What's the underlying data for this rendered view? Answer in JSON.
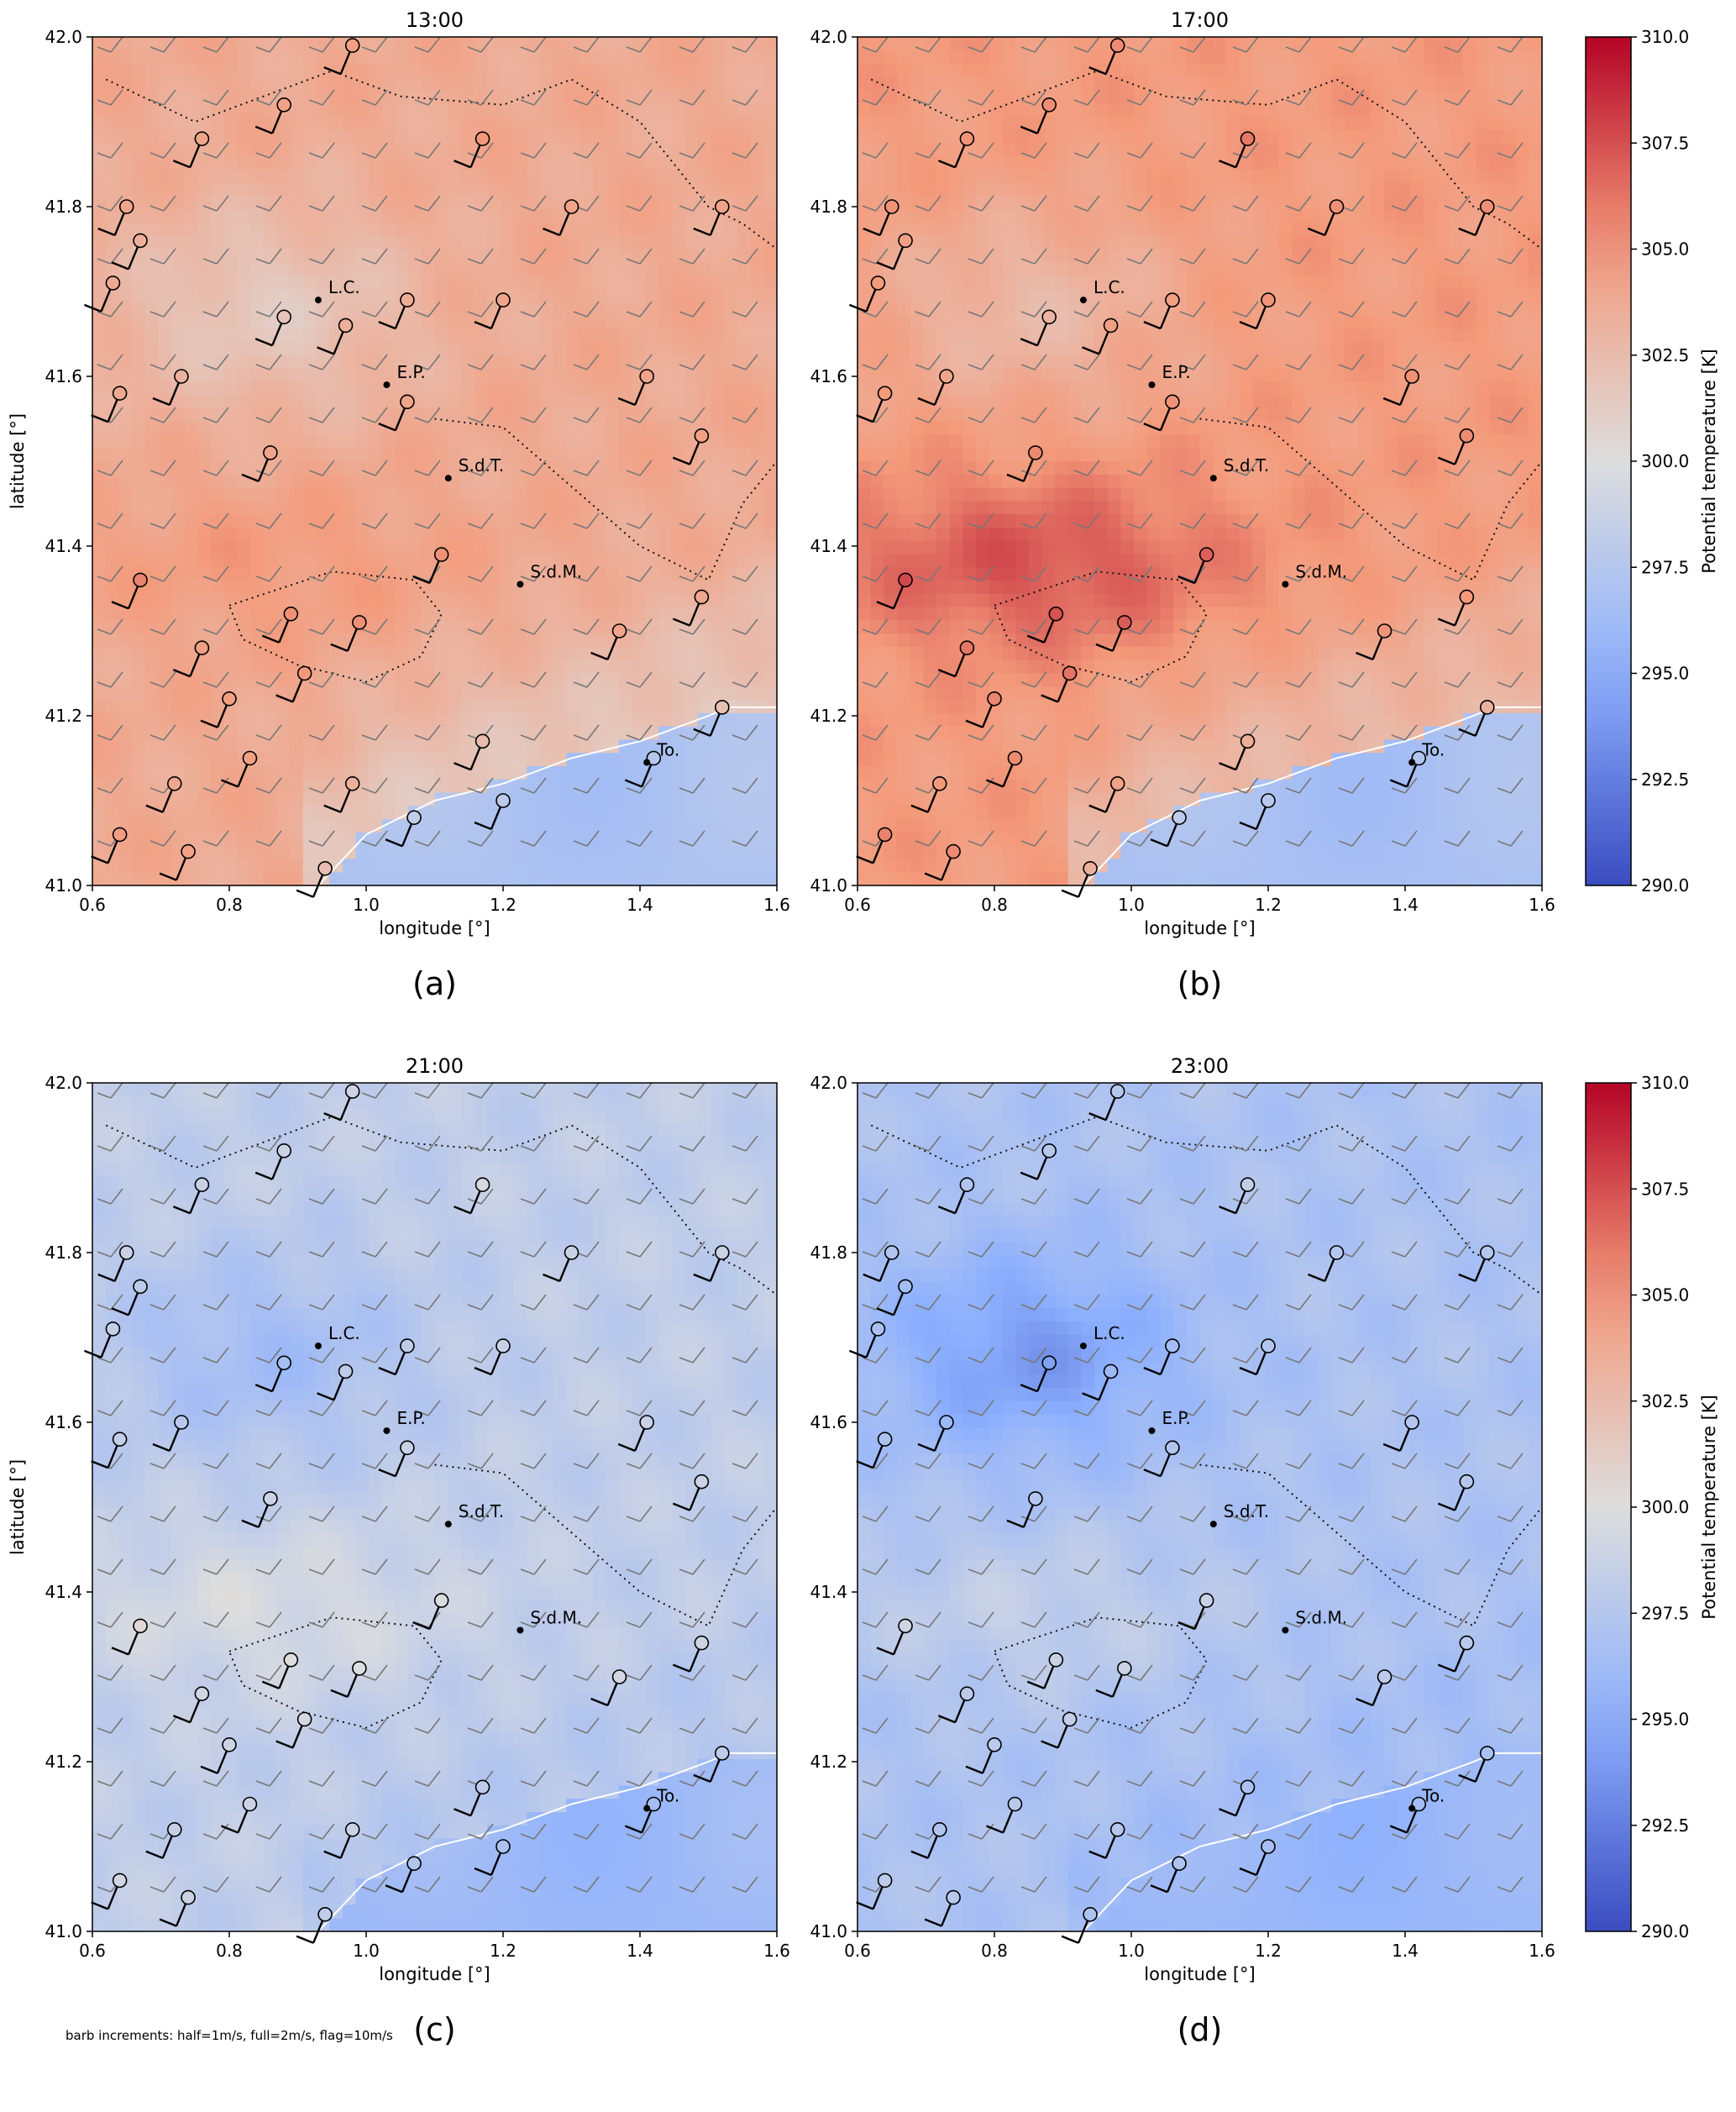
{
  "chart_data": [
    {
      "type": "heatmap",
      "title": "13:00",
      "sub_label": "(a)",
      "xlabel": "longitude [°]",
      "ylabel": "latitude [°]",
      "xlim": [
        0.6,
        1.6
      ],
      "ylim": [
        41.0,
        42.0
      ],
      "xticks": [
        "0.6",
        "0.8",
        "1.0",
        "1.2",
        "1.4",
        "1.6"
      ],
      "yticks": [
        "41.0",
        "41.2",
        "41.4",
        "41.6",
        "41.8",
        "42.0"
      ],
      "field": {
        "base": 303.8,
        "sea_temp": 297.0,
        "warm_band": 1.0,
        "cool_band": -2.2
      },
      "coastline": [
        [
          0.93,
          41.0
        ],
        [
          1.0,
          41.06
        ],
        [
          1.1,
          41.1
        ],
        [
          1.2,
          41.12
        ],
        [
          1.3,
          41.15
        ],
        [
          1.4,
          41.17
        ],
        [
          1.5,
          41.2
        ],
        [
          1.53,
          41.21
        ],
        [
          1.6,
          41.21
        ]
      ],
      "cities": [
        {
          "name": "L.C.",
          "lon": 0.93,
          "lat": 41.69
        },
        {
          "name": "E.P.",
          "lon": 1.03,
          "lat": 41.59
        },
        {
          "name": "S.d.T.",
          "lon": 1.12,
          "lat": 41.48
        },
        {
          "name": "S.d.M.",
          "lon": 1.225,
          "lat": 41.355
        },
        {
          "name": "To.",
          "lon": 1.41,
          "lat": 41.145
        }
      ]
    },
    {
      "type": "heatmap",
      "title": "17:00",
      "sub_label": "(b)",
      "xlabel": "longitude [°]",
      "ylabel": "",
      "xlim": [
        0.6,
        1.6
      ],
      "ylim": [
        41.0,
        42.0
      ],
      "xticks": [
        "0.6",
        "0.8",
        "1.0",
        "1.2",
        "1.4",
        "1.6"
      ],
      "yticks": [
        "41.0",
        "41.2",
        "41.4",
        "41.6",
        "41.8",
        "42.0"
      ],
      "field": {
        "base": 304.8,
        "sea_temp": 296.8,
        "warm_band": 2.5,
        "cool_band": -2.0
      },
      "coastline": [
        [
          0.93,
          41.0
        ],
        [
          1.0,
          41.06
        ],
        [
          1.1,
          41.1
        ],
        [
          1.2,
          41.12
        ],
        [
          1.3,
          41.15
        ],
        [
          1.4,
          41.17
        ],
        [
          1.5,
          41.2
        ],
        [
          1.53,
          41.21
        ],
        [
          1.6,
          41.21
        ]
      ],
      "cities": [
        {
          "name": "L.C.",
          "lon": 0.93,
          "lat": 41.69
        },
        {
          "name": "E.P.",
          "lon": 1.03,
          "lat": 41.59
        },
        {
          "name": "S.d.T.",
          "lon": 1.12,
          "lat": 41.48
        },
        {
          "name": "S.d.M.",
          "lon": 1.225,
          "lat": 41.355
        },
        {
          "name": "To.",
          "lon": 1.41,
          "lat": 41.145
        }
      ]
    },
    {
      "type": "heatmap",
      "title": "21:00",
      "sub_label": "(c)",
      "xlabel": "longitude [°]",
      "ylabel": "latitude [°]",
      "xlim": [
        0.6,
        1.6
      ],
      "ylim": [
        41.0,
        42.0
      ],
      "xticks": [
        "0.6",
        "0.8",
        "1.0",
        "1.2",
        "1.4",
        "1.6"
      ],
      "yticks": [
        "41.0",
        "41.2",
        "41.4",
        "41.6",
        "41.8",
        "42.0"
      ],
      "field": {
        "base": 298.2,
        "sea_temp": 296.0,
        "warm_band": 1.4,
        "cool_band": -1.8
      },
      "coastline": [
        [
          0.93,
          41.0
        ],
        [
          1.0,
          41.06
        ],
        [
          1.1,
          41.1
        ],
        [
          1.2,
          41.12
        ],
        [
          1.3,
          41.15
        ],
        [
          1.4,
          41.17
        ],
        [
          1.5,
          41.2
        ],
        [
          1.53,
          41.21
        ],
        [
          1.6,
          41.21
        ]
      ],
      "cities": [
        {
          "name": "L.C.",
          "lon": 0.93,
          "lat": 41.69
        },
        {
          "name": "E.P.",
          "lon": 1.03,
          "lat": 41.59
        },
        {
          "name": "S.d.T.",
          "lon": 1.12,
          "lat": 41.48
        },
        {
          "name": "S.d.M.",
          "lon": 1.225,
          "lat": 41.355
        },
        {
          "name": "To.",
          "lon": 1.41,
          "lat": 41.145
        }
      ]
    },
    {
      "type": "heatmap",
      "title": "23:00",
      "sub_label": "(d)",
      "xlabel": "longitude [°]",
      "ylabel": "",
      "xlim": [
        0.6,
        1.6
      ],
      "ylim": [
        41.0,
        42.0
      ],
      "xticks": [
        "0.6",
        "0.8",
        "1.0",
        "1.2",
        "1.4",
        "1.6"
      ],
      "yticks": [
        "41.0",
        "41.2",
        "41.4",
        "41.6",
        "41.8",
        "42.0"
      ],
      "field": {
        "base": 297.0,
        "sea_temp": 295.8,
        "warm_band": 1.3,
        "cool_band": -3.0
      },
      "coastline": [
        [
          0.93,
          41.0
        ],
        [
          1.0,
          41.06
        ],
        [
          1.1,
          41.1
        ],
        [
          1.2,
          41.12
        ],
        [
          1.3,
          41.15
        ],
        [
          1.4,
          41.17
        ],
        [
          1.5,
          41.2
        ],
        [
          1.53,
          41.21
        ],
        [
          1.6,
          41.21
        ]
      ],
      "cities": [
        {
          "name": "L.C.",
          "lon": 0.93,
          "lat": 41.69
        },
        {
          "name": "E.P.",
          "lon": 1.03,
          "lat": 41.59
        },
        {
          "name": "S.d.T.",
          "lon": 1.12,
          "lat": 41.48
        },
        {
          "name": "S.d.M.",
          "lon": 1.225,
          "lat": 41.355
        },
        {
          "name": "To.",
          "lon": 1.41,
          "lat": 41.145
        }
      ]
    }
  ],
  "colorbar": {
    "label": "Potential temperature [K]",
    "min": 290.0,
    "max": 310.0,
    "ticks": [
      "290.0",
      "292.5",
      "295.0",
      "297.5",
      "300.0",
      "302.5",
      "305.0",
      "307.5",
      "310.0"
    ],
    "colormap": "coolwarm"
  },
  "note": "barb increments: half=1m/s, full=2m/s, flag=10m/s",
  "colors": {
    "coolwarm_low": "#3b4cc0",
    "coolwarm_mid": "#dddddd",
    "coolwarm_high": "#b40426",
    "coastline": "#ffffff"
  }
}
